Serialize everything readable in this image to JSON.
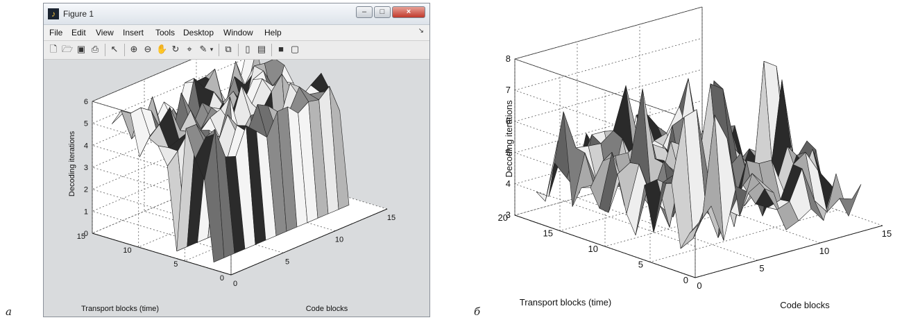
{
  "panel_labels": [
    "а",
    "б"
  ],
  "window": {
    "title": "Figure 1",
    "buttons": [
      "–",
      "□",
      "×"
    ],
    "menu": [
      "File",
      "Edit",
      "View",
      "Insert",
      "Tools",
      "Desktop",
      "Window",
      "Help"
    ]
  },
  "toolbar_icons": [
    "new-figure-icon",
    "open-file-icon",
    "save-icon",
    "print-icon",
    "pointer-icon",
    "zoom-in-icon",
    "zoom-out-icon",
    "pan-icon",
    "rotate-3d-icon",
    "data-cursor-icon",
    "brush-icon",
    "link-icon",
    "colorbar-icon",
    "legend-icon",
    "hide-plot-tools-icon",
    "show-plot-tools-icon"
  ],
  "chart_data": [
    {
      "type": "surface3d",
      "panel": "а",
      "zlabel": "Decoding iterations",
      "xlabel": "Code blocks",
      "ylabel": "Transport blocks (time)",
      "x_ticks": [
        "0",
        "5",
        "10",
        "15"
      ],
      "y_ticks": [
        "0",
        "5",
        "10",
        "15"
      ],
      "z_ticks": [
        "0",
        "1",
        "2",
        "3",
        "4",
        "5",
        "6"
      ],
      "xlim": [
        0,
        15
      ],
      "ylim": [
        0,
        15
      ],
      "zlim": [
        0,
        6
      ],
      "x_range": [
        1,
        14
      ],
      "y_range": [
        3,
        14
      ],
      "grid": true,
      "background": "#d9dbdd",
      "note": "surface heights mostly 3.5–6; two rows of low (zero) values form vertical walls"
    },
    {
      "type": "surface3d",
      "panel": "б",
      "zlabel": "Decoding iterations",
      "xlabel": "Code blocks",
      "ylabel": "Transport blocks (time)",
      "x_ticks": [
        "0",
        "5",
        "10",
        "15"
      ],
      "y_ticks": [
        "0",
        "5",
        "10",
        "15",
        "20"
      ],
      "z_ticks": [
        "3",
        "4",
        "5",
        "6",
        "7",
        "8"
      ],
      "xlim": [
        0,
        15
      ],
      "ylim": [
        0,
        20
      ],
      "zlim": [
        3,
        8
      ],
      "x_range": [
        1,
        14
      ],
      "y_range": [
        1,
        19
      ],
      "grid": true,
      "background": "#ffffff",
      "note": "surface heights mostly 3.5–5.5 with peaks reaching ~7.8"
    }
  ]
}
